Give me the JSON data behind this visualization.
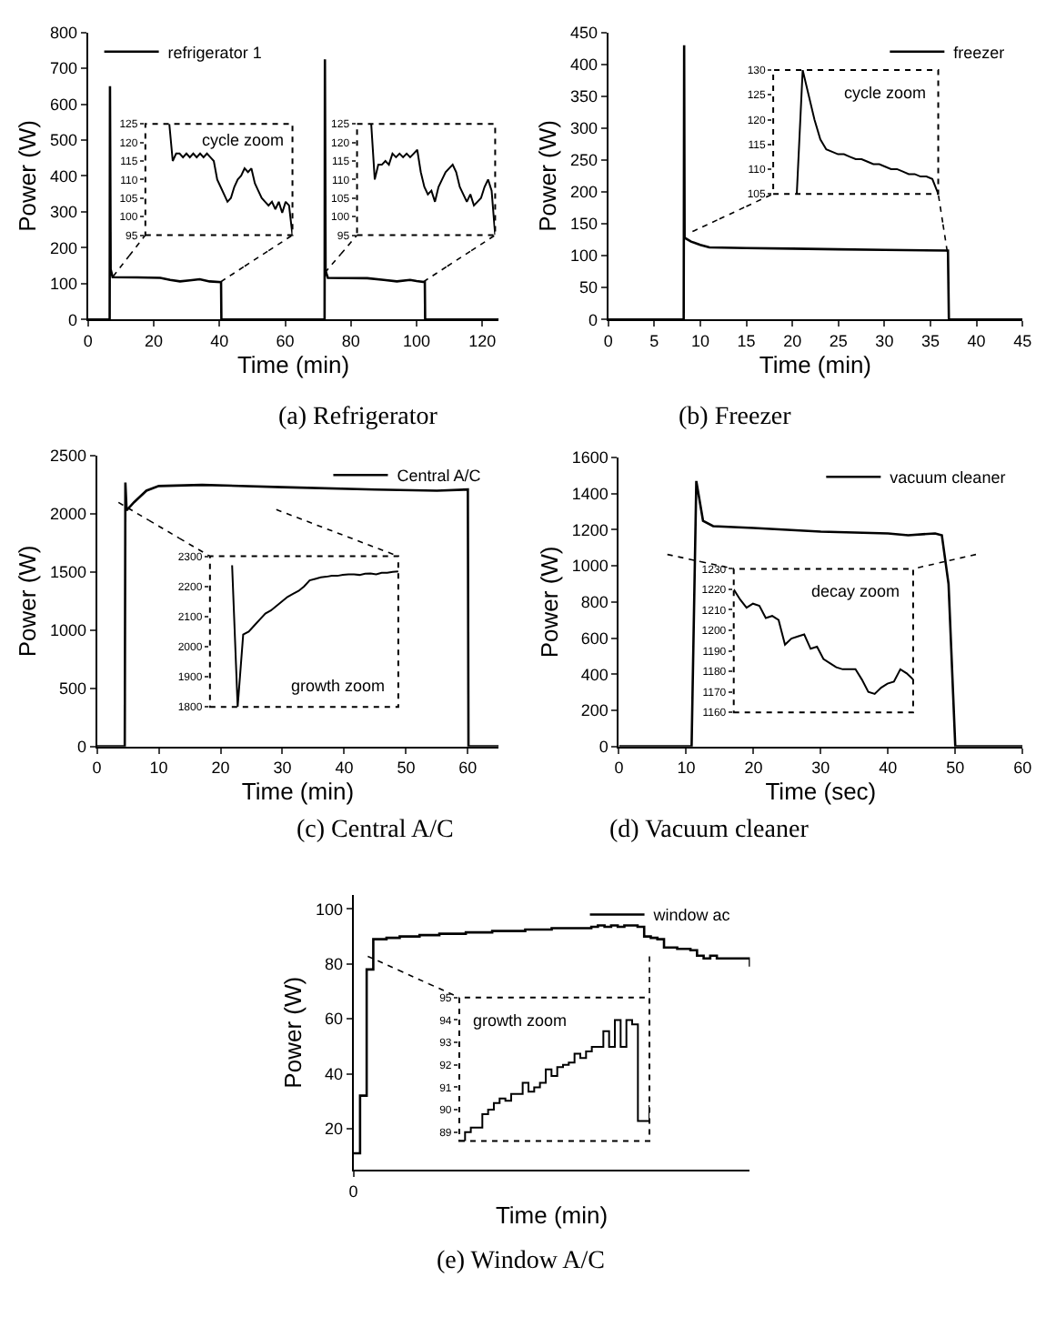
{
  "chart_data": [
    {
      "type": "line",
      "title": "(a) Refrigerator",
      "xlabel": "Time (min)",
      "ylabel": "Power (W)",
      "xlim": [
        0,
        125
      ],
      "xticks": [
        0,
        20,
        40,
        60,
        80,
        100,
        120
      ],
      "ylim": [
        0,
        800
      ],
      "yticks": [
        0,
        100,
        200,
        300,
        400,
        500,
        600,
        700,
        800
      ],
      "legend": "top left",
      "series": [
        {
          "name": "refrigerator 1",
          "color": "#000000",
          "x": [
            0,
            6.6,
            6.7,
            6.9,
            7.5,
            15,
            22,
            25,
            28,
            31,
            34,
            37,
            40.5,
            40.6,
            72,
            72.1,
            72.3,
            73,
            85,
            90,
            94,
            98,
            100,
            102.5,
            102.6,
            125
          ],
          "values": [
            0,
            0,
            650,
            140,
            118,
            117,
            116,
            110,
            106,
            109,
            112,
            106,
            104,
            0,
            0,
            725,
            135,
            116,
            115,
            110,
            106,
            110,
            107,
            104,
            0,
            0
          ]
        }
      ]
    },
    {
      "type": "line",
      "annotations": [
        "cycle zoom"
      ],
      "ylim": [
        95,
        125
      ],
      "yticks": [
        95,
        100,
        105,
        110,
        115,
        120,
        125
      ],
      "tick_labels": "y",
      "categories": [
        null,
        null,
        null,
        null,
        null,
        null,
        null,
        null,
        null,
        null,
        null,
        null,
        null,
        null,
        null,
        null,
        null,
        null,
        null,
        null,
        null,
        null,
        null,
        null,
        null,
        null,
        null,
        null,
        null,
        null,
        null,
        null,
        null,
        null,
        null,
        null,
        null,
        null,
        null,
        null,
        null,
        null,
        null,
        null
      ],
      "series": [
        {
          "color": "#000000",
          "values": [
            null,
            null,
            null,
            null,
            null,
            null,
            null,
            125,
            115,
            117,
            117,
            116,
            117,
            116,
            117,
            116,
            117,
            116,
            117,
            116,
            115,
            110,
            108,
            106,
            104,
            105,
            108,
            110,
            111,
            113,
            112,
            113,
            109,
            107,
            105,
            104,
            103,
            104,
            102,
            104,
            101,
            104,
            103,
            95
          ]
        }
      ]
    },
    {
      "type": "line",
      "ylim": [
        95,
        125
      ],
      "yticks": [
        95,
        100,
        105,
        110,
        115,
        120,
        125
      ],
      "tick_labels": "y",
      "categories": [
        null,
        null,
        null,
        null,
        null,
        null,
        null,
        null,
        null,
        null,
        null,
        null,
        null,
        null,
        null,
        null,
        null,
        null,
        null,
        null,
        null,
        null,
        null,
        null,
        null,
        null,
        null,
        null,
        null,
        null,
        null,
        null,
        null,
        null,
        null,
        null,
        null,
        null,
        null,
        null
      ],
      "series": [
        {
          "color": "#000000",
          "values": [
            null,
            null,
            null,
            null,
            125,
            110,
            114,
            114,
            115,
            114,
            117,
            116,
            117,
            116,
            117,
            116,
            117,
            118,
            112,
            108,
            106,
            107,
            104,
            108,
            110,
            112,
            113,
            114,
            112,
            108,
            106,
            104,
            106,
            103,
            104,
            105,
            108,
            110,
            107,
            95
          ]
        }
      ]
    },
    {
      "type": "line",
      "title": "(b) Freezer",
      "xlabel": "Time (min)",
      "ylabel": "Power (W)",
      "xlim": [
        0,
        45
      ],
      "xticks": [
        0,
        5,
        10,
        15,
        20,
        25,
        30,
        35,
        40,
        45
      ],
      "ylim": [
        0,
        450
      ],
      "yticks": [
        0,
        50,
        100,
        150,
        200,
        250,
        300,
        350,
        400,
        450
      ],
      "legend": "top right",
      "series": [
        {
          "name": "freezer",
          "color": "#000000",
          "x": [
            0,
            8.2,
            8.25,
            8.3,
            9,
            10,
            11,
            15,
            20,
            25,
            30,
            36.9,
            37,
            45
          ],
          "values": [
            0,
            0,
            430,
            128,
            122,
            117,
            113,
            112,
            111,
            110,
            109,
            108,
            0,
            0
          ]
        }
      ]
    },
    {
      "type": "line",
      "annotations": [
        "cycle zoom"
      ],
      "ylim": [
        105,
        130
      ],
      "yticks": [
        105,
        110,
        115,
        120,
        125,
        130
      ],
      "tick_labels": "y",
      "categories": [
        null,
        null,
        null,
        null,
        null,
        null,
        null,
        null,
        null,
        null,
        null,
        null,
        null,
        null,
        null,
        null,
        null,
        null,
        null,
        null,
        null,
        null,
        null,
        null,
        null,
        null,
        null,
        null,
        null
      ],
      "series": [
        {
          "color": "#000000",
          "values": [
            null,
            null,
            null,
            null,
            105,
            130,
            125,
            120,
            116,
            114,
            113.5,
            113,
            113,
            112.5,
            112,
            112,
            111.5,
            111,
            111,
            110.5,
            110,
            110,
            109.5,
            109,
            109,
            108.5,
            108.5,
            108,
            105
          ]
        }
      ]
    },
    {
      "type": "line",
      "title": "(c) Central A/C",
      "xlabel": "Time (min)",
      "ylabel": "Power (W)",
      "xlim": [
        0,
        65
      ],
      "xticks": [
        0,
        10,
        20,
        30,
        40,
        50,
        60
      ],
      "ylim": [
        0,
        2500
      ],
      "yticks": [
        0,
        500,
        1000,
        1500,
        2000,
        2500
      ],
      "legend": "top right",
      "series": [
        {
          "name": "Central A/C",
          "color": "#000000",
          "x": [
            0,
            4.5,
            4.6,
            4.8,
            6,
            8,
            10,
            17,
            30,
            45,
            55,
            60,
            60.1,
            65
          ],
          "values": [
            0,
            0,
            2270,
            2030,
            2100,
            2200,
            2240,
            2250,
            2230,
            2210,
            2200,
            2210,
            0,
            0
          ]
        }
      ]
    },
    {
      "type": "line",
      "annotations": [
        "growth zoom"
      ],
      "ylim": [
        1800,
        2300
      ],
      "yticks": [
        1800,
        1900,
        2000,
        2100,
        2200,
        2300
      ],
      "tick_labels": "y",
      "categories": [
        null,
        null,
        null,
        null,
        null,
        null,
        null,
        null,
        null,
        null,
        null,
        null,
        null,
        null,
        null,
        null,
        null,
        null,
        null,
        null,
        null,
        null,
        null,
        null,
        null,
        null,
        null,
        null,
        null,
        null,
        null,
        null,
        null,
        null,
        null
      ],
      "series": [
        {
          "color": "#000000",
          "values": [
            null,
            null,
            null,
            null,
            2270,
            1800,
            2040,
            2050,
            2070,
            2090,
            2110,
            2120,
            2135,
            2150,
            2165,
            2175,
            2185,
            2200,
            2220,
            2225,
            2230,
            2232,
            2235,
            2235,
            2238,
            2240,
            2240,
            2238,
            2242,
            2243,
            2240,
            2245,
            2245,
            2248,
            2250
          ]
        }
      ]
    },
    {
      "type": "line",
      "title": "(d) Vacuum cleaner",
      "xlabel": "Time (sec)",
      "ylabel": "Power (W)",
      "xlim": [
        0,
        60
      ],
      "xticks": [
        0,
        10,
        20,
        30,
        40,
        50,
        60
      ],
      "ylim": [
        0,
        1600
      ],
      "yticks": [
        0,
        200,
        400,
        600,
        800,
        1000,
        1200,
        1400,
        1600
      ],
      "legend": "top right",
      "series": [
        {
          "name": "vacuum cleaner",
          "color": "#000000",
          "x": [
            0,
            10.8,
            11.5,
            12.5,
            14,
            20,
            25,
            30,
            40,
            43,
            47,
            48,
            49,
            50,
            60
          ],
          "values": [
            0,
            0,
            1470,
            1250,
            1220,
            1210,
            1200,
            1190,
            1180,
            1170,
            1180,
            1170,
            900,
            0,
            0
          ]
        }
      ]
    },
    {
      "type": "line",
      "annotations": [
        "decay zoom"
      ],
      "ylim": [
        1160,
        1230
      ],
      "yticks": [
        1160,
        1170,
        1180,
        1190,
        1200,
        1210,
        1220,
        1230
      ],
      "tick_labels": "y",
      "categories": [
        null,
        null,
        null,
        null,
        null,
        null,
        null,
        null,
        null,
        null,
        null,
        null,
        null,
        null,
        null,
        null,
        null,
        null,
        null,
        null,
        null,
        null,
        null,
        null,
        null,
        null,
        null,
        null,
        null
      ],
      "series": [
        {
          "color": "#000000",
          "values": [
            1220,
            1215,
            1211,
            1213,
            1212,
            1206,
            1207,
            1205,
            1193,
            1196,
            1197,
            1198,
            1191,
            1192,
            1186,
            1184,
            1182,
            1181,
            1181,
            1181,
            1176,
            1170,
            1169,
            1172,
            1174,
            1175,
            1181,
            1179,
            1176
          ]
        }
      ]
    },
    {
      "type": "step",
      "title": "(e) Window A/C",
      "xlabel": "Time (min)",
      "ylabel": "Power (W)",
      "ylim": [
        5,
        105
      ],
      "yticks": [
        20,
        40,
        60,
        80,
        100
      ],
      "legend": "top right",
      "categories": [
        "0",
        null,
        null,
        null,
        null,
        null,
        null,
        null,
        null,
        null,
        null,
        null,
        null,
        null,
        null,
        null,
        null,
        null,
        null,
        null,
        null,
        null,
        null,
        null,
        null,
        null,
        null,
        null,
        null,
        null,
        null,
        null,
        null,
        null,
        null,
        null,
        null,
        null,
        null,
        null,
        null,
        null,
        null,
        null,
        null,
        null,
        null,
        null,
        null,
        null,
        null,
        null,
        null,
        null,
        null,
        null,
        null,
        null,
        null,
        null,
        null
      ],
      "series": [
        {
          "name": "window ac",
          "color": "#000000",
          "values": [
            11,
            32,
            78,
            89,
            89,
            89.5,
            89.5,
            90,
            90,
            90,
            90.5,
            90.5,
            90.5,
            91,
            91,
            91,
            91,
            91.5,
            91.5,
            91.5,
            91.5,
            92,
            92,
            92,
            92,
            92,
            92.5,
            92.5,
            92.5,
            92.5,
            93,
            93,
            93,
            93,
            93,
            93,
            93.5,
            94,
            93.5,
            94,
            93.5,
            94,
            94,
            93.5,
            90,
            89.5,
            89,
            86,
            86,
            85.5,
            85.5,
            85,
            83,
            82,
            83,
            82,
            82,
            82,
            82,
            82,
            79
          ]
        }
      ]
    },
    {
      "type": "step",
      "annotations": [
        "growth zoom"
      ],
      "ylim": [
        88.6,
        95
      ],
      "yticks": [
        89,
        90,
        91,
        92,
        93,
        94,
        95
      ],
      "tick_labels": "y",
      "categories": [
        null,
        null,
        null,
        null,
        null,
        null,
        null,
        null,
        null,
        null,
        null,
        null,
        null,
        null,
        null,
        null,
        null,
        null,
        null,
        null,
        null,
        null,
        null,
        null,
        null,
        null,
        null,
        null,
        null,
        null,
        null,
        null,
        null,
        null
      ],
      "series": [
        {
          "color": "#000000",
          "values": [
            88.6,
            89,
            89.2,
            89.2,
            89.8,
            90,
            90.3,
            90.5,
            90.4,
            90.7,
            90.7,
            91.2,
            90.8,
            91,
            91.2,
            91.8,
            91.5,
            91.9,
            92,
            92.1,
            92.5,
            92.3,
            92.6,
            92.8,
            92.8,
            93.5,
            92.8,
            94,
            92.8,
            94,
            93.8,
            89.5,
            89.5,
            90.2
          ]
        }
      ]
    }
  ]
}
